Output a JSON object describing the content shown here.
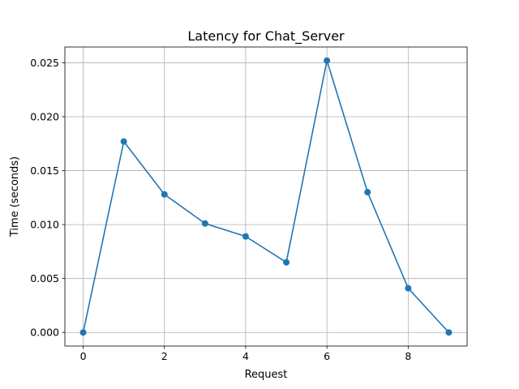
{
  "chart_data": {
    "type": "line",
    "title": "Latency for Chat_Server",
    "xlabel": "Request",
    "ylabel": "Time (seconds)",
    "xlim": [
      -0.45,
      9.45
    ],
    "ylim": [
      -0.00126,
      0.02646
    ],
    "x_ticks": [
      0,
      2,
      4,
      6,
      8
    ],
    "x_tick_labels": [
      "0",
      "2",
      "4",
      "6",
      "8"
    ],
    "y_ticks": [
      0.0,
      0.005,
      0.01,
      0.015,
      0.02,
      0.025
    ],
    "y_tick_labels": [
      "0.000",
      "0.005",
      "0.010",
      "0.015",
      "0.020",
      "0.025"
    ],
    "grid": true,
    "legend": "none",
    "series": [
      {
        "color": "#1f77b4",
        "marker": "circle",
        "x": [
          0,
          1,
          2,
          3,
          4,
          5,
          6,
          7,
          8,
          9
        ],
        "values": [
          0.0,
          0.0177,
          0.0128,
          0.0101,
          0.0089,
          0.0065,
          0.0252,
          0.013,
          0.0041,
          0.0
        ]
      }
    ]
  }
}
